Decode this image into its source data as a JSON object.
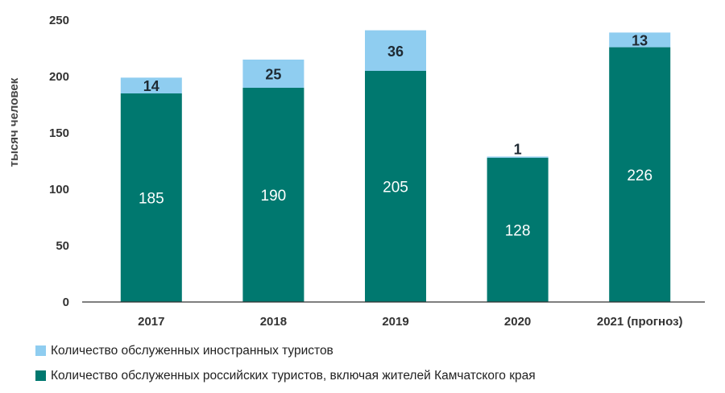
{
  "chart_data": {
    "type": "bar",
    "stacked": true,
    "categories": [
      "2017",
      "2018",
      "2019",
      "2020",
      "2021 (прогноз)"
    ],
    "series": [
      {
        "name": "Количество обслуженных российских туристов, включая жителей Камчатского края",
        "color": "#00786f",
        "values": [
          185,
          190,
          205,
          128,
          226
        ]
      },
      {
        "name": "Количество обслуженных иностранных туристов",
        "color": "#8fcdf0",
        "values": [
          14,
          25,
          36,
          1,
          13
        ]
      }
    ],
    "ylabel": "тысяч человек",
    "ylim": [
      0,
      250
    ],
    "yticks": [
      0,
      50,
      100,
      150,
      200,
      250
    ],
    "grid": false,
    "legend_position": "bottom-left"
  }
}
